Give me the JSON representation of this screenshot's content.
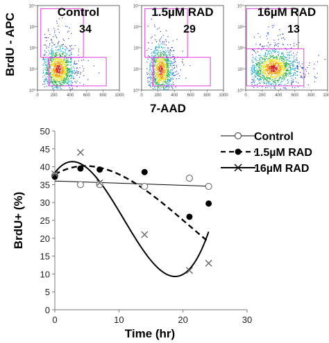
{
  "figure": {
    "flow_panels": [
      {
        "title": "Control",
        "percent": "34",
        "gate": "high",
        "cloud": {
          "cx": 250,
          "cy": 10,
          "sx": 95,
          "sy": 0.55,
          "n": 1300
        }
      },
      {
        "title": "1.5µM RAD",
        "percent": "29",
        "gate": "high",
        "cloud": {
          "cx": 230,
          "cy": 9,
          "sx": 70,
          "sy": 0.6,
          "n": 1100
        }
      },
      {
        "title": "16µM RAD",
        "percent": "13",
        "gate": "low",
        "cloud": {
          "cx": 330,
          "cy": 11,
          "sx": 140,
          "sy": 0.45,
          "n": 1400
        }
      }
    ],
    "flow_y_label": "BrdU - APC",
    "flow_x_label": "7-AAD",
    "flow_x_ticks": [
      "0",
      "200",
      "400",
      "600",
      "800",
      "1000"
    ],
    "flow_y_ticks": [
      "10⁰",
      "10¹",
      "10²",
      "10³",
      "10⁴"
    ],
    "colors": {
      "gate": "#e040e0",
      "plot_line": "#000000",
      "marker_gray": "#777777"
    }
  },
  "chart_data": {
    "type": "line",
    "xlabel": "Time (hr)",
    "ylabel": "BrdU+ (%)",
    "xlim": [
      0,
      30
    ],
    "ylim": [
      0,
      50
    ],
    "x_ticks": [
      0,
      10,
      20,
      30
    ],
    "y_ticks": [
      0,
      5,
      10,
      15,
      20,
      25,
      30,
      35,
      40,
      45,
      50
    ],
    "legend_position": "top-right",
    "series": [
      {
        "name": "Control",
        "marker": "open-circle",
        "line": "solid-thin",
        "x": [
          0,
          4,
          7,
          14,
          21,
          24
        ],
        "y": [
          37.5,
          35,
          35,
          34.5,
          36.8,
          34.5
        ],
        "fit": {
          "type": "linear",
          "a": 36,
          "b": -0.06
        }
      },
      {
        "name": "1.5µM RAD",
        "marker": "filled-circle",
        "line": "dashed",
        "x": [
          0,
          4,
          7,
          14,
          21,
          24
        ],
        "y": [
          37.2,
          39.5,
          39.2,
          38.5,
          26,
          29.7
        ],
        "fit": {
          "type": "poly",
          "c": [
            37.8,
            1.05,
            -0.124,
            0.00198
          ]
        }
      },
      {
        "name": "16µM RAD",
        "marker": "x",
        "line": "solid-bold",
        "x": [
          0,
          4,
          7,
          14,
          21,
          24
        ],
        "y": [
          38,
          44,
          35.5,
          21,
          11,
          13
        ],
        "fit": {
          "type": "poly",
          "c": [
            38.3,
            2.4,
            -0.503,
            0.0156
          ]
        }
      }
    ]
  }
}
